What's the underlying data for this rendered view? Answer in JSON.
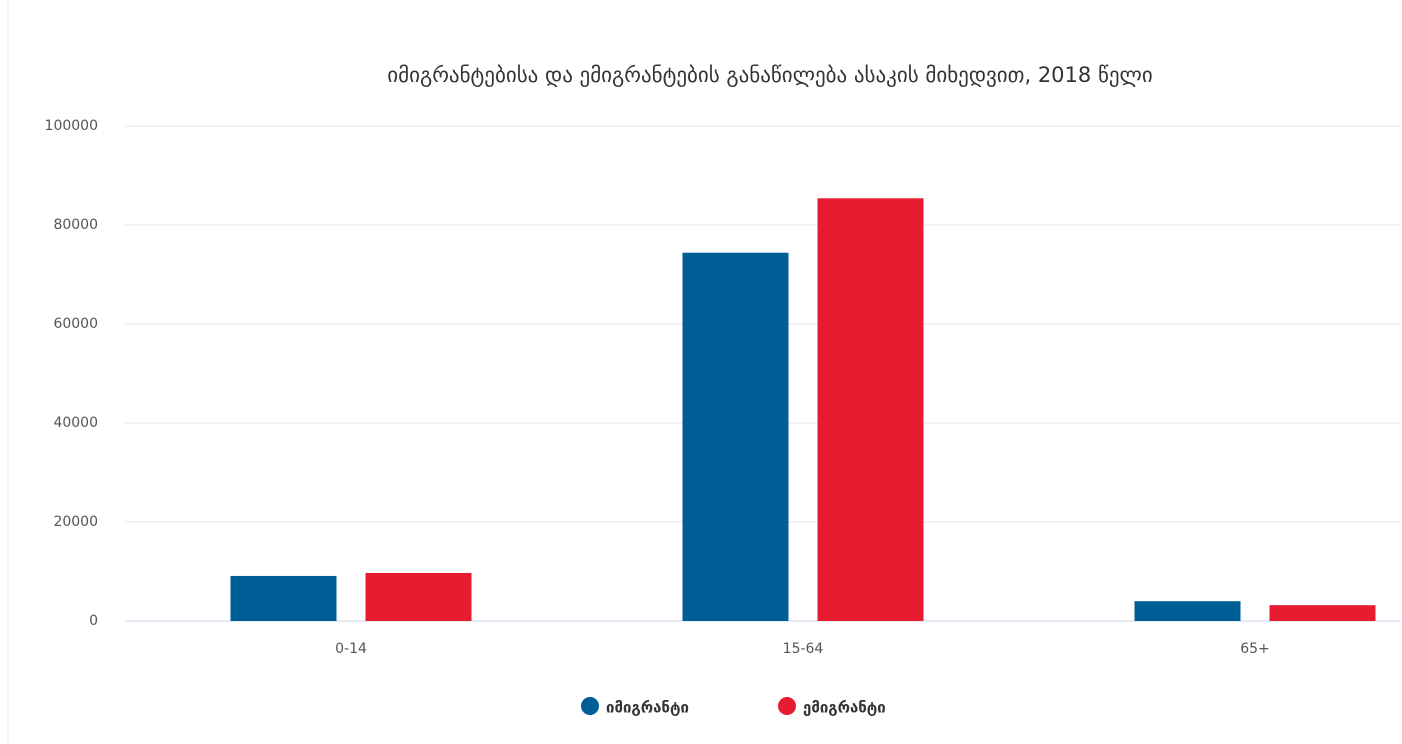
{
  "chart_data": {
    "type": "bar",
    "title": "იმიგრანტებისა და ემიგრანტების განაწილება ასაკის მიხედვით, 2018 წელი",
    "categories": [
      "0-14",
      "15-64",
      "65+"
    ],
    "series": [
      {
        "name": "იმიგრანტი",
        "color": "#005e96",
        "values": [
          9100,
          74400,
          4000
        ]
      },
      {
        "name": "ემიგრანტი",
        "color": "#e81c30",
        "values": [
          9700,
          85400,
          3200
        ]
      }
    ],
    "ylim": [
      0,
      100000
    ],
    "yticks": [
      0,
      20000,
      40000,
      60000,
      80000,
      100000
    ],
    "grid": true
  }
}
